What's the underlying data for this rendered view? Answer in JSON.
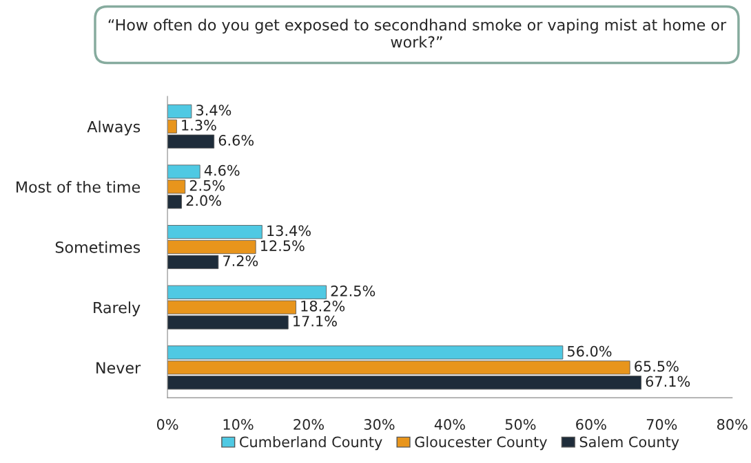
{
  "chart_data": {
    "type": "bar",
    "orientation": "horizontal",
    "title": "“How often do you get exposed to secondhand smoke or vaping mist at home or work?”",
    "categories": [
      "Always",
      "Most of the time",
      "Sometimes",
      "Rarely",
      "Never"
    ],
    "series": [
      {
        "name": "Cumberland County",
        "color": "#4fc9e3",
        "values": [
          3.4,
          4.6,
          13.4,
          22.5,
          56.0
        ],
        "value_labels": [
          "3.4%",
          "4.6%",
          "13.4%",
          "22.5%",
          "56.0%"
        ]
      },
      {
        "name": "Gloucester County",
        "color": "#e8951c",
        "values": [
          1.3,
          2.5,
          12.5,
          18.2,
          65.5
        ],
        "value_labels": [
          "1.3%",
          "2.5%",
          "12.5%",
          "18.2%",
          "65.5%"
        ]
      },
      {
        "name": "Salem County",
        "color": "#1e2c3a",
        "values": [
          6.6,
          2.0,
          7.2,
          17.1,
          67.1
        ],
        "value_labels": [
          "6.6%",
          "2.0%",
          "7.2%",
          "17.1%",
          "67.1%"
        ]
      }
    ],
    "xlim": [
      0,
      80
    ],
    "xticks": [
      {
        "value": 0,
        "label": "0%"
      },
      {
        "value": 10,
        "label": "10%"
      },
      {
        "value": 20,
        "label": "20%"
      },
      {
        "value": 30,
        "label": "30%"
      },
      {
        "value": 40,
        "label": "40%"
      },
      {
        "value": 50,
        "label": "50%"
      },
      {
        "value": 60,
        "label": "60%"
      },
      {
        "value": 70,
        "label": "70%"
      },
      {
        "value": 80,
        "label": "80%"
      }
    ],
    "grid": false,
    "legend": "bottom"
  }
}
